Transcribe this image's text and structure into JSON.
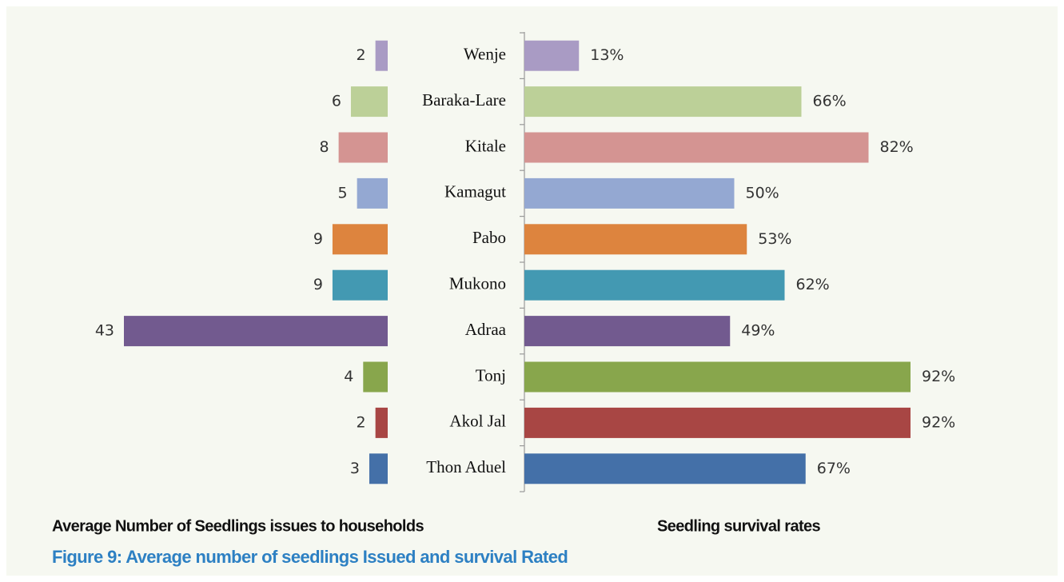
{
  "chart_data": {
    "type": "bar",
    "categories": [
      "Wenje",
      "Baraka-Lare",
      "Kitale",
      "Kamagut",
      "Pabo",
      "Mukono",
      "Adraa",
      "Tonj",
      "Akol Jal",
      "Thon Aduel"
    ],
    "colors": [
      "#a99bc4",
      "#bcd098",
      "#d49492",
      "#94a8d2",
      "#dd843e",
      "#4399b2",
      "#725a8f",
      "#88a64c",
      "#a84644",
      "#4470a8"
    ],
    "series": [
      {
        "name": "Average Number of Seedlings issues to households",
        "values": [
          2,
          6,
          8,
          5,
          9,
          9,
          43,
          4,
          2,
          3
        ]
      },
      {
        "name": "Seedling survival rates",
        "values": [
          13,
          66,
          82,
          50,
          53,
          62,
          49,
          92,
          92,
          67
        ],
        "value_labels": [
          "13%",
          "66%",
          "82%",
          "50%",
          "53%",
          "62%",
          "49%",
          "92%",
          "92%",
          "67%"
        ]
      }
    ]
  },
  "caption": "Figure 9: Average number of seedlings Issued and survival Rated"
}
